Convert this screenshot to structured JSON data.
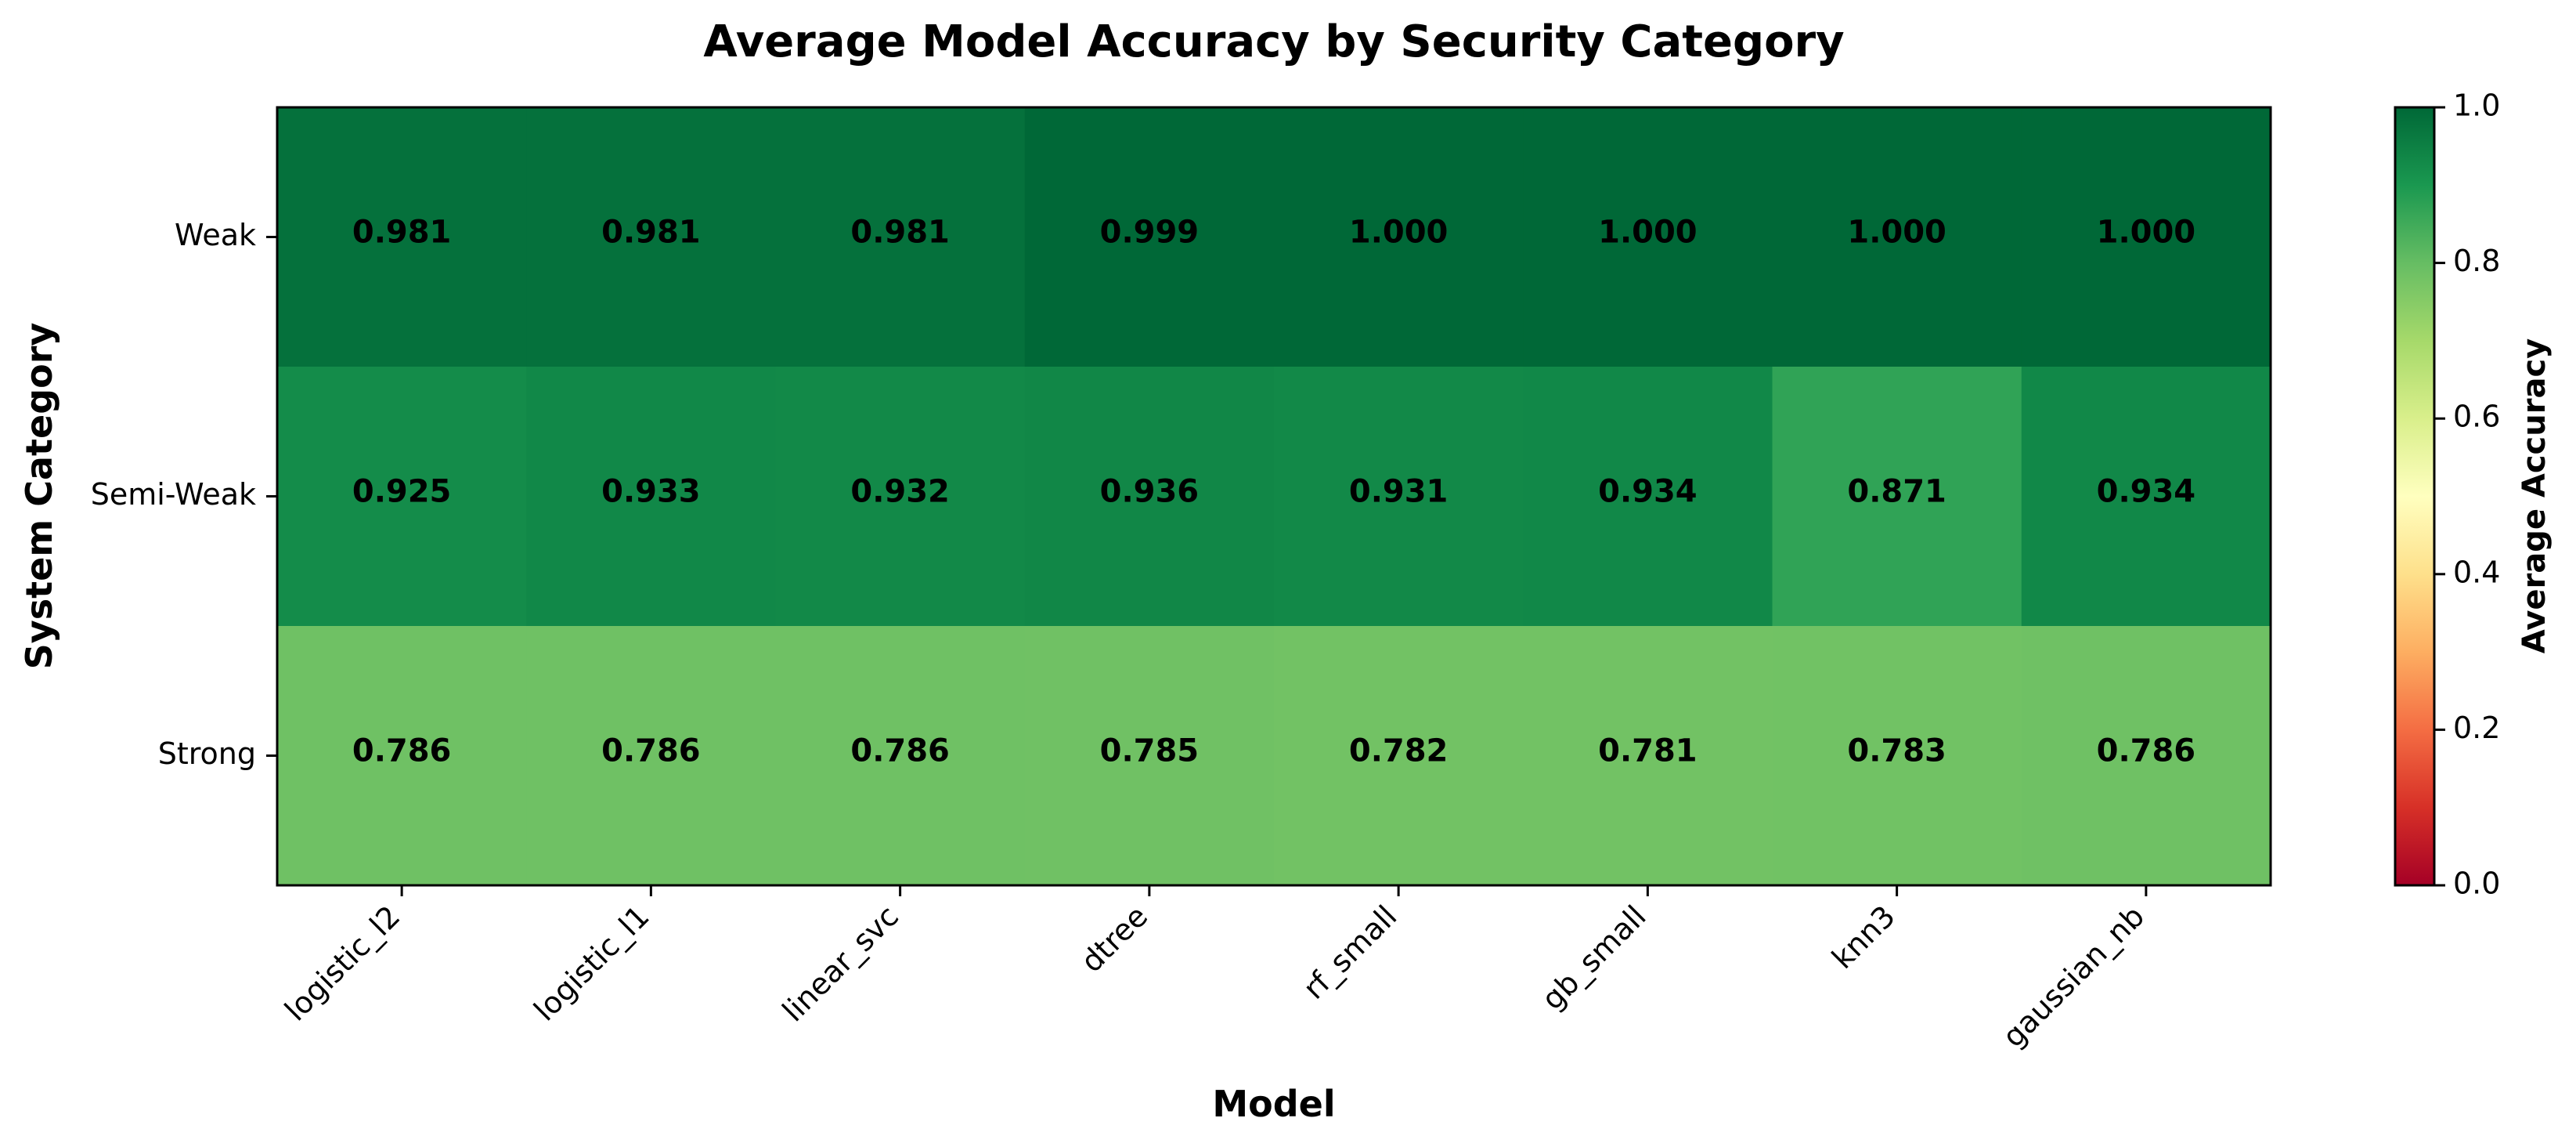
{
  "chart_data": {
    "type": "heatmap",
    "title": "Average Model Accuracy by Security Category",
    "xlabel": "Model",
    "ylabel": "System Category",
    "x_categories": [
      "logistic_l2",
      "logistic_l1",
      "linear_svc",
      "dtree",
      "rf_small",
      "gb_small",
      "knn3",
      "gaussian_nb"
    ],
    "y_categories": [
      "Weak",
      "Semi-Weak",
      "Strong"
    ],
    "values": [
      [
        0.981,
        0.981,
        0.981,
        0.999,
        1.0,
        1.0,
        1.0,
        1.0
      ],
      [
        0.925,
        0.933,
        0.932,
        0.936,
        0.931,
        0.934,
        0.871,
        0.934
      ],
      [
        0.786,
        0.786,
        0.786,
        0.785,
        0.782,
        0.781,
        0.783,
        0.786
      ]
    ],
    "value_labels": [
      [
        "0.981",
        "0.981",
        "0.981",
        "0.999",
        "1.000",
        "1.000",
        "1.000",
        "1.000"
      ],
      [
        "0.925",
        "0.933",
        "0.932",
        "0.936",
        "0.931",
        "0.934",
        "0.871",
        "0.934"
      ],
      [
        "0.786",
        "0.786",
        "0.786",
        "0.785",
        "0.782",
        "0.781",
        "0.783",
        "0.786"
      ]
    ],
    "colormap": "RdYlGn",
    "colormap_stops": [
      "#a50026",
      "#d73027",
      "#f46d43",
      "#fdae61",
      "#fee08b",
      "#ffffbf",
      "#d9ef8b",
      "#a6d96a",
      "#66bd63",
      "#1a9850",
      "#006837"
    ],
    "vmin": 0.0,
    "vmax": 1.0,
    "colorbar": {
      "label": "Average Accuracy",
      "ticks": [
        0.0,
        0.2,
        0.4,
        0.6,
        0.8,
        1.0
      ],
      "tick_labels": [
        "0.0",
        "0.2",
        "0.4",
        "0.6",
        "0.8",
        "1.0"
      ],
      "placement": "right"
    },
    "grid": false
  }
}
